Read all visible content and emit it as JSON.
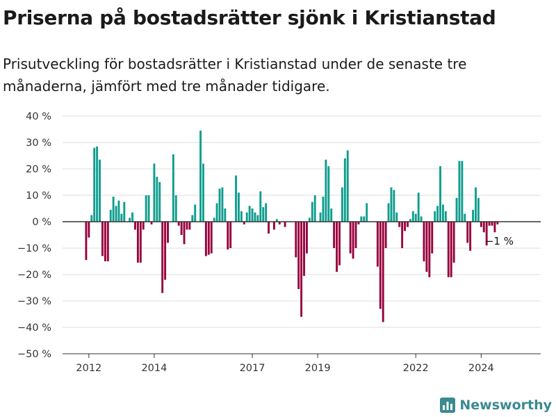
{
  "title": "Priserna på bostadsrätter sjönk i Kristianstad",
  "subtitle": "Prisutveckling för bostadsrätter i Kristianstad under de senaste tre månaderna, jämfört med tre månader tidigare.",
  "brand": {
    "name": "Newsworthy",
    "icon": "newsworthy-logo-icon"
  },
  "colors": {
    "positive": "#0f9d8e",
    "negative": "#97003c",
    "grid": "#dddddd",
    "brand": "#3a8a91"
  },
  "chart_data": {
    "type": "bar",
    "x_unit": "month",
    "x_start": "2011-11",
    "xticks": [
      "2012",
      "2014",
      "2017",
      "2019",
      "2022",
      "2024"
    ],
    "ylim": [
      -50,
      40
    ],
    "yticks": [
      -50,
      -40,
      -30,
      -20,
      -10,
      0,
      10,
      20,
      30,
      40
    ],
    "ytick_labels": [
      "−50 %",
      "−40 %",
      "−30 %",
      "−20 %",
      "−10 %",
      "0 %",
      "10 %",
      "20 %",
      "30 %",
      "40 %"
    ],
    "grid": true,
    "last_value_label": "−1 %",
    "values": [
      0,
      -14.5,
      -6,
      2.5,
      28,
      28.5,
      23.5,
      -13,
      -15,
      -15,
      4.5,
      9.5,
      6,
      8,
      3,
      7.5,
      0,
      1.5,
      3.5,
      -3,
      -15.5,
      -15.5,
      -3,
      10,
      10,
      -1,
      22,
      17,
      15,
      -27,
      -22,
      -8,
      0,
      25.5,
      10,
      -1.5,
      -5,
      -8.5,
      -3,
      -3,
      2.5,
      6.5,
      0,
      34.5,
      22,
      -13,
      -12.5,
      -12,
      1.5,
      7,
      12.5,
      13,
      5,
      -10.5,
      -10,
      0,
      17.5,
      11,
      4,
      -1,
      3.5,
      6,
      5,
      3.5,
      2.5,
      11.5,
      5.5,
      7,
      -4.5,
      0,
      -3,
      1,
      -1,
      0,
      -2,
      0,
      0,
      0,
      -13.5,
      -25.5,
      -36,
      -20.5,
      -12,
      1.5,
      7.5,
      10,
      0,
      3.5,
      9.5,
      23.5,
      21,
      5,
      -10,
      -19,
      -16.5,
      13,
      24,
      27,
      -12,
      -14,
      -10,
      -1,
      2,
      2,
      7,
      0,
      0,
      0,
      -17,
      -33,
      -38,
      -10,
      7,
      13,
      12,
      3.5,
      -2,
      -10,
      -3.5,
      -2,
      1,
      4,
      3,
      11,
      2,
      -15,
      -19,
      -21,
      -12,
      4,
      6,
      21,
      6.5,
      4,
      -21,
      -21,
      -15.5,
      9,
      23,
      23,
      3,
      -8,
      -11,
      4.5,
      13,
      9,
      -2,
      -4,
      -9,
      -1.5,
      -1.5,
      -4,
      -1
    ]
  }
}
